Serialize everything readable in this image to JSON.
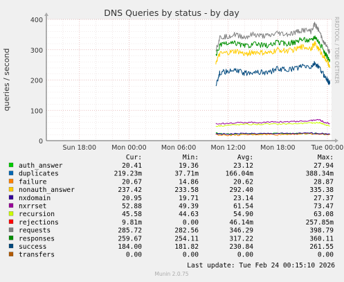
{
  "chart_data": {
    "type": "line",
    "title": "DNS Queries by status - by day",
    "ylabel": "queries / second",
    "xlabel": "",
    "watermark": "RRDTOOL / TOBI OETIKER",
    "ylim": [
      0,
      400
    ],
    "yticks": [
      0,
      100,
      200,
      300,
      400
    ],
    "xlim": [
      -10,
      24.5
    ],
    "xticks": [
      {
        "label": "Sun 18:00",
        "hour": -6
      },
      {
        "label": "Mon 00:00",
        "hour": 0
      },
      {
        "label": "Mon 06:00",
        "hour": 6
      },
      {
        "label": "Mon 12:00",
        "hour": 12
      },
      {
        "label": "Mon 18:00",
        "hour": 18
      },
      {
        "label": "Tue 00:00",
        "hour": 24
      }
    ],
    "grid": true,
    "column_headers": [
      "Cur:",
      "Min:",
      "Avg:",
      "Max:"
    ],
    "series": [
      {
        "name": "auth_answer",
        "color": "#00cc00",
        "cur": "20.41",
        "min": "19.36",
        "avg": "23.12",
        "max": "27.94",
        "x": [
          10.5,
          12,
          14,
          16,
          18,
          20,
          22,
          23.5,
          24.3
        ],
        "y": [
          25,
          21,
          23,
          22,
          24,
          23,
          24,
          22,
          20
        ]
      },
      {
        "name": "duplicates",
        "color": "#0066b3",
        "cur": "219.23m",
        "min": "37.71m",
        "avg": "166.04m",
        "max": "388.34m",
        "x": [],
        "y": []
      },
      {
        "name": "failure",
        "color": "#ff8000",
        "cur": "20.67",
        "min": "14.86",
        "avg": "20.62",
        "max": "28.87",
        "x": [
          10.5,
          12,
          14,
          16,
          18,
          20,
          22,
          23.5,
          24.3
        ],
        "y": [
          20,
          18,
          19,
          21,
          20,
          22,
          23,
          21,
          20
        ]
      },
      {
        "name": "nonauth_answer",
        "color": "#ffcc00",
        "cur": "237.42",
        "min": "233.58",
        "avg": "292.40",
        "max": "335.38",
        "x": [
          10.5,
          11,
          12,
          13,
          14,
          15,
          16,
          17,
          18,
          19,
          20,
          21,
          22,
          22.5,
          23,
          23.5,
          24,
          24.3
        ],
        "y": [
          260,
          285,
          290,
          295,
          285,
          292,
          290,
          288,
          300,
          296,
          300,
          310,
          305,
          320,
          300,
          280,
          260,
          240
        ]
      },
      {
        "name": "nxdomain",
        "color": "#330099",
        "cur": "20.95",
        "min": "19.71",
        "avg": "23.14",
        "max": "27.37",
        "x": [
          10.5,
          12,
          14,
          16,
          18,
          20,
          22,
          23.5,
          24.3
        ],
        "y": [
          22,
          22,
          24,
          23,
          24,
          23,
          25,
          23,
          21
        ]
      },
      {
        "name": "nxrrset",
        "color": "#990099",
        "cur": "52.88",
        "min": "49.39",
        "avg": "61.54",
        "max": "73.47",
        "x": [
          10.5,
          12,
          14,
          16,
          18,
          20,
          22,
          23,
          23.5,
          24.3
        ],
        "y": [
          55,
          58,
          60,
          60,
          62,
          63,
          66,
          70,
          62,
          56
        ]
      },
      {
        "name": "recursion",
        "color": "#ccff00",
        "cur": "45.58",
        "min": "44.63",
        "avg": "54.90",
        "max": "63.08",
        "x": [
          10.5,
          12,
          14,
          16,
          18,
          20,
          22,
          23,
          23.5,
          24.3
        ],
        "y": [
          48,
          51,
          54,
          54,
          55,
          56,
          58,
          60,
          55,
          48
        ]
      },
      {
        "name": "rejections",
        "color": "#ff0000",
        "cur": "9.81m",
        "min": "0.00",
        "avg": "46.14m",
        "max": "257.85m",
        "x": [],
        "y": []
      },
      {
        "name": "requests",
        "color": "#808080",
        "cur": "285.72",
        "min": "282.56",
        "avg": "346.29",
        "max": "398.79",
        "x": [
          10.5,
          11,
          12,
          13,
          14,
          15,
          16,
          17,
          18,
          19,
          20,
          21,
          22,
          22.5,
          23,
          23.5,
          24,
          24.3
        ],
        "y": [
          300,
          340,
          345,
          350,
          340,
          350,
          345,
          345,
          355,
          350,
          355,
          365,
          360,
          385,
          360,
          330,
          305,
          290
        ]
      },
      {
        "name": "responses",
        "color": "#008f00",
        "cur": "259.67",
        "min": "254.11",
        "avg": "317.22",
        "max": "360.11",
        "x": [
          10.5,
          11,
          12,
          13,
          14,
          15,
          16,
          17,
          18,
          19,
          20,
          21,
          22,
          22.5,
          23,
          23.5,
          24,
          24.3
        ],
        "y": [
          280,
          315,
          320,
          322,
          312,
          318,
          316,
          314,
          325,
          320,
          325,
          335,
          330,
          345,
          325,
          300,
          275,
          262
        ]
      },
      {
        "name": "success",
        "color": "#00487d",
        "cur": "184.00",
        "min": "181.82",
        "avg": "230.84",
        "max": "261.55",
        "x": [
          10.5,
          11,
          12,
          13,
          14,
          15,
          16,
          17,
          18,
          19,
          20,
          21,
          22,
          22.5,
          23,
          23.5,
          24,
          24.3
        ],
        "y": [
          185,
          225,
          228,
          232,
          222,
          228,
          226,
          225,
          238,
          234,
          238,
          246,
          242,
          255,
          240,
          220,
          200,
          188
        ]
      },
      {
        "name": "transfers",
        "color": "#b35a00",
        "cur": "0.00",
        "min": "0.00",
        "avg": "0.00",
        "max": "0.00",
        "x": [],
        "y": []
      }
    ],
    "last_update": "Last update: Tue Feb 24 00:15:10 2026",
    "footer": "Munin 2.0.75"
  }
}
